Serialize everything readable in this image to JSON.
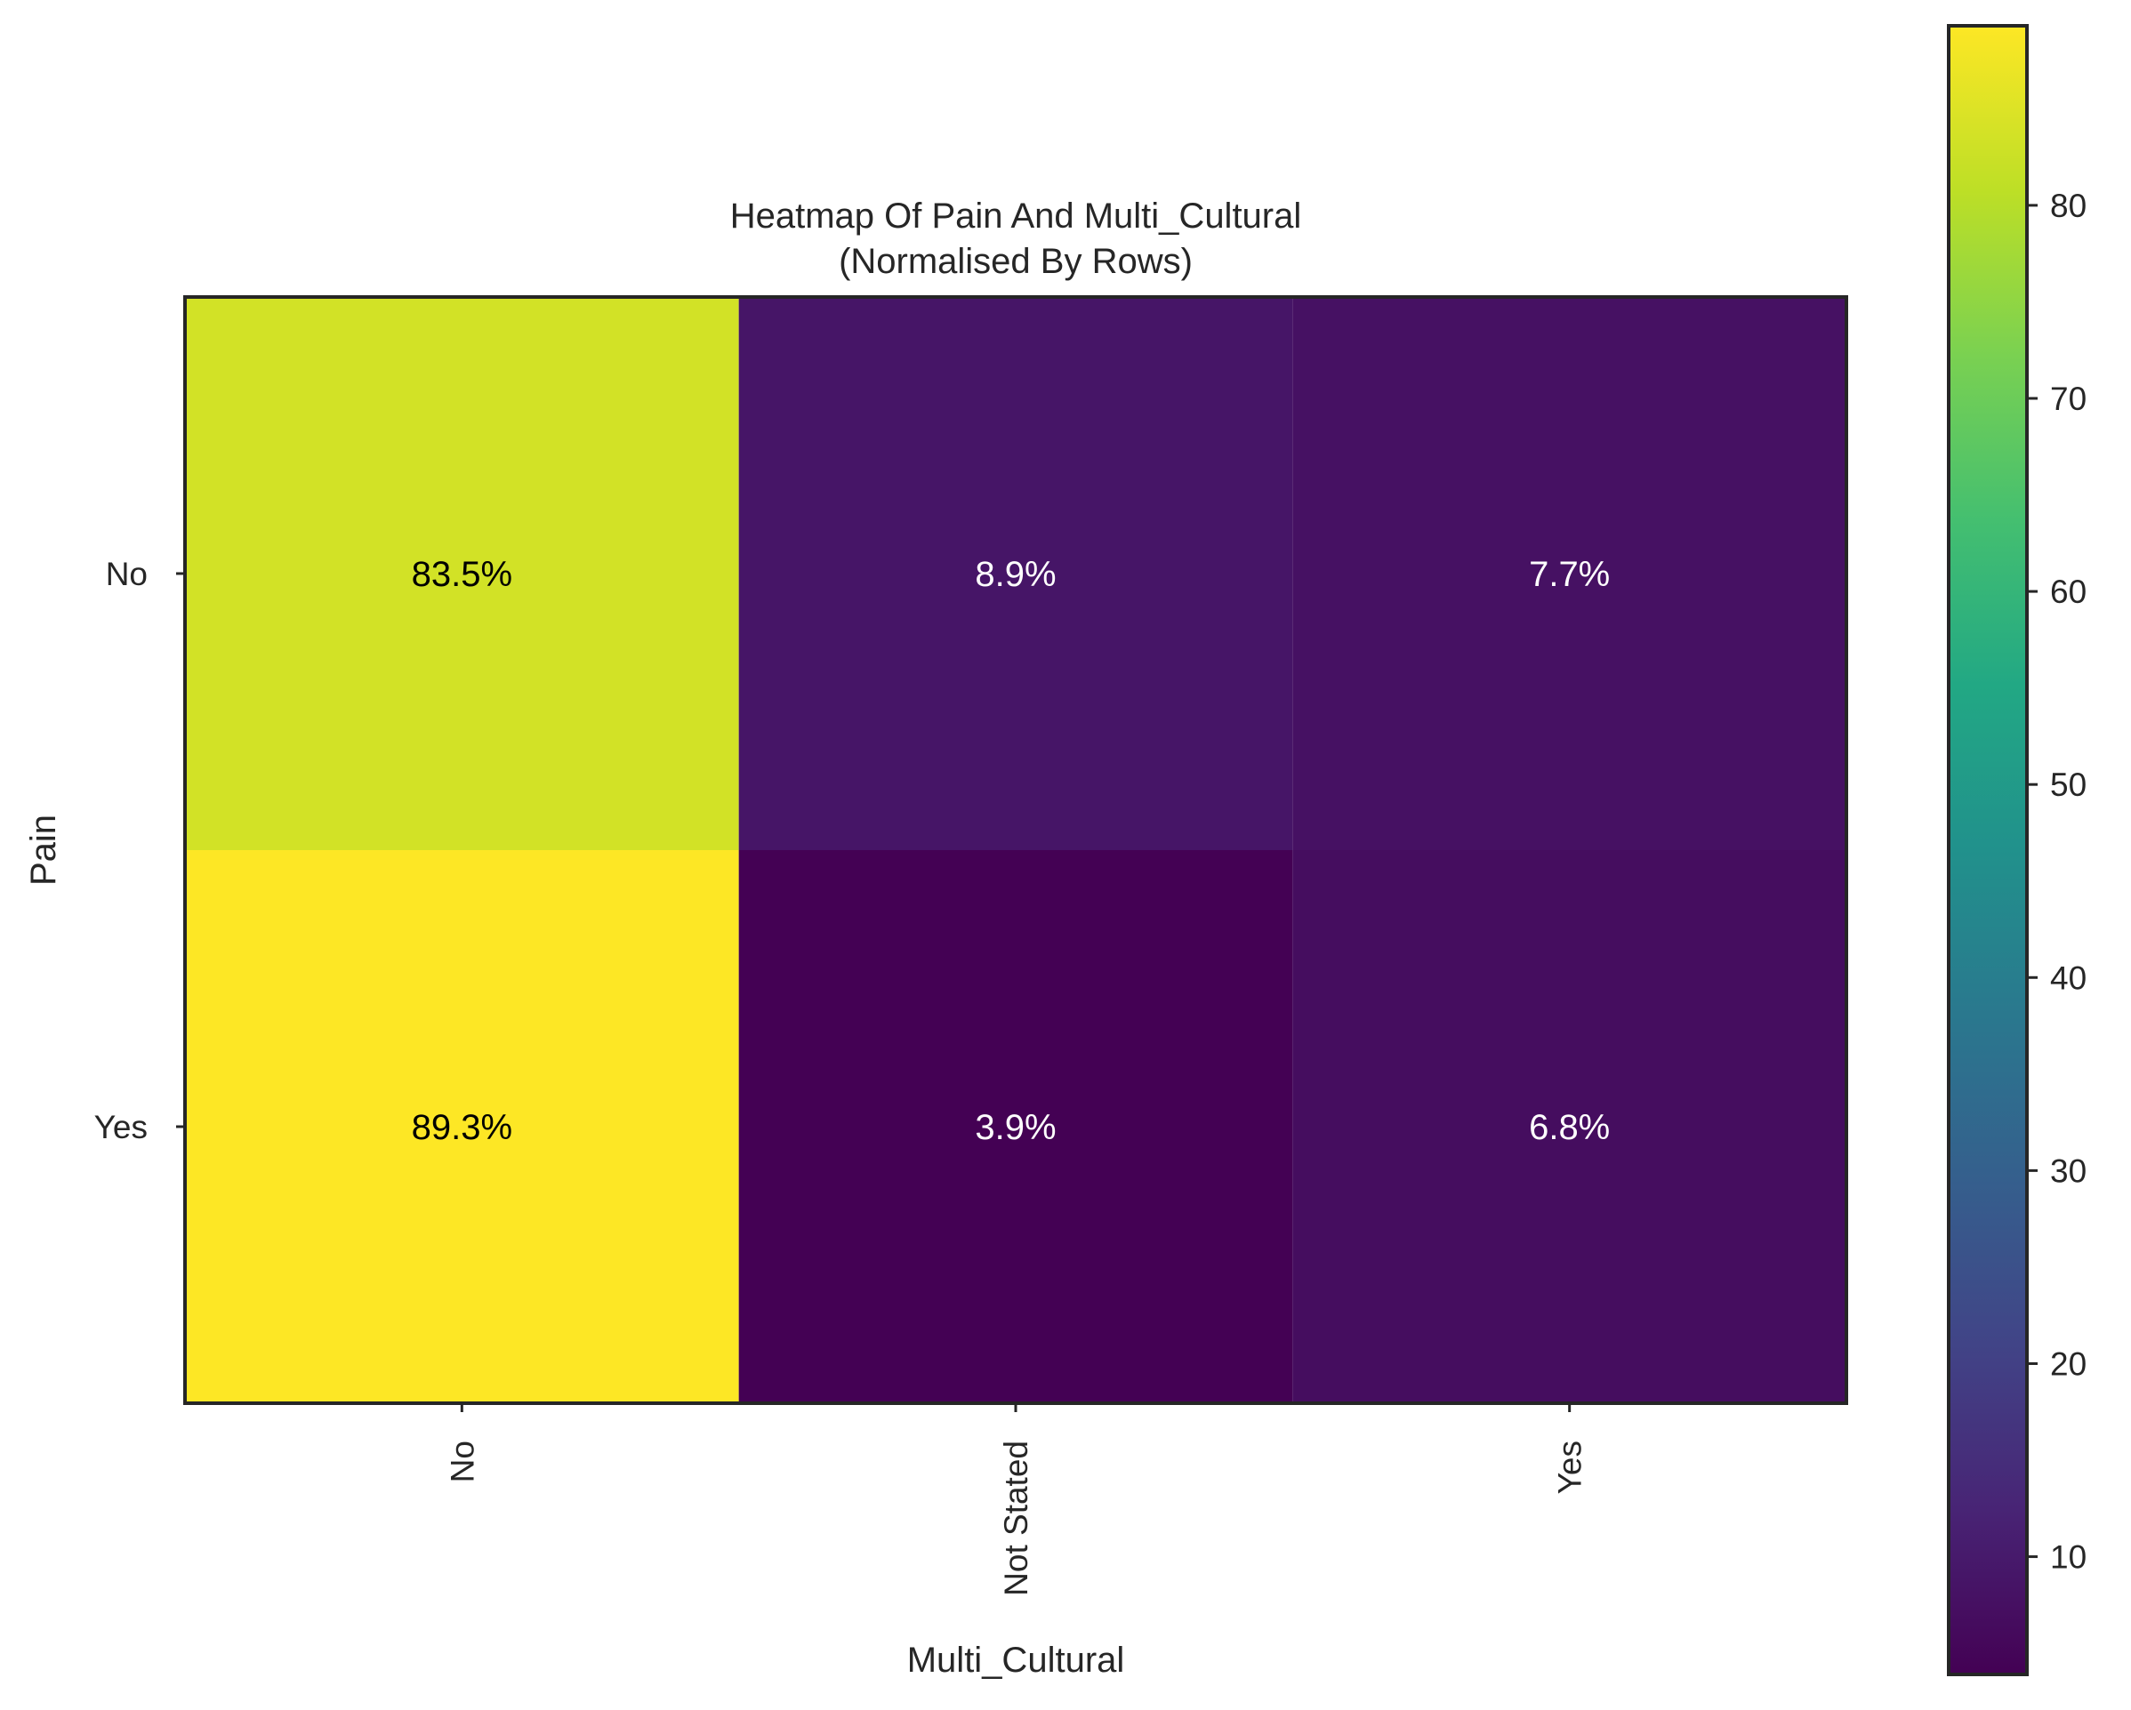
{
  "chart_data": {
    "type": "heatmap",
    "title": "Heatmap Of Pain And Multi_Cultural",
    "subtitle": "(Normalised By Rows)",
    "xlabel": "Multi_Cultural",
    "ylabel": "Pain",
    "x_categories": [
      "No",
      "Not Stated",
      "Yes"
    ],
    "y_categories": [
      "No",
      "Yes"
    ],
    "values": [
      [
        83.5,
        8.9,
        7.7
      ],
      [
        89.3,
        3.9,
        6.8
      ]
    ],
    "cell_labels": [
      [
        "83.5%",
        "8.9%",
        "7.7%"
      ],
      [
        "89.3%",
        "3.9%",
        "6.8%"
      ]
    ],
    "colormap": "viridis",
    "colorbar": {
      "range": [
        3.9,
        89.3
      ],
      "ticks": [
        10,
        20,
        30,
        40,
        50,
        60,
        70,
        80
      ]
    },
    "grid": false
  }
}
